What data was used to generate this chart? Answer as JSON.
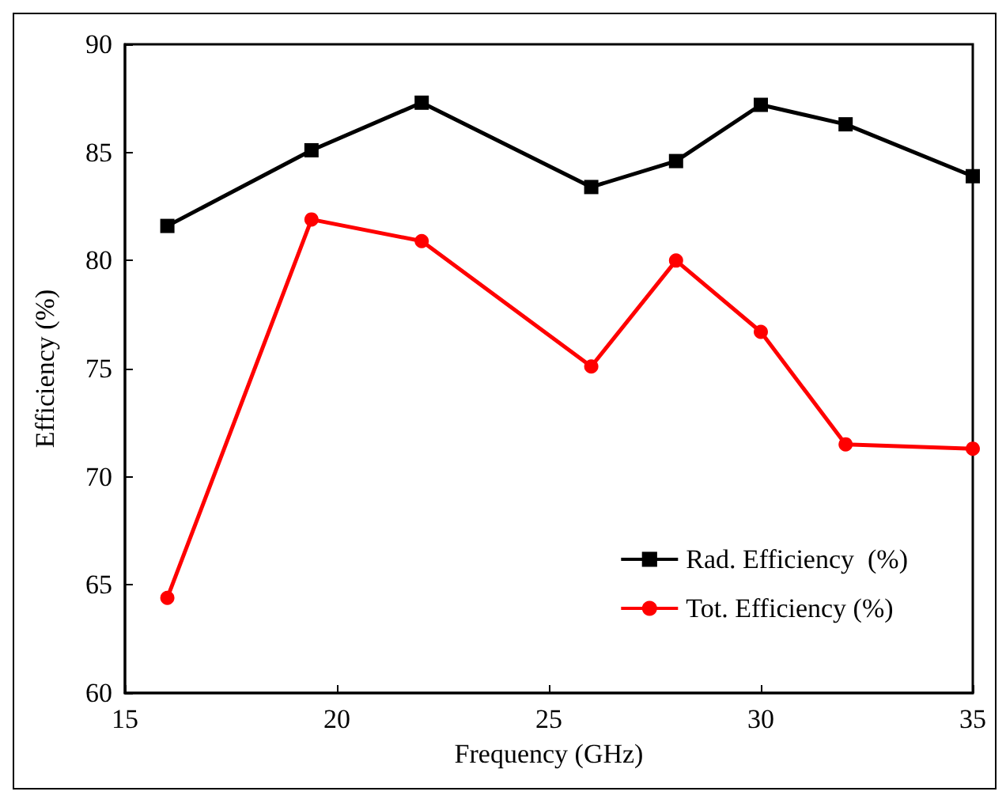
{
  "chart_data": {
    "type": "line",
    "xlabel": "Frequency (GHz)",
    "ylabel": "Efficiency (%)",
    "xlim": [
      15,
      35
    ],
    "xticks": [
      15,
      20,
      25,
      30,
      35
    ],
    "ylim": [
      60,
      90
    ],
    "yticks": [
      60,
      65,
      70,
      75,
      80,
      85,
      90
    ],
    "grid": false,
    "legend": "bottom right",
    "line_style": "solid",
    "series": [
      {
        "name": "Rad. Efficiency  (%)",
        "color": "#000000",
        "marker": "square",
        "x": [
          16,
          19.4,
          22,
          26,
          28,
          30,
          32,
          35
        ],
        "values": [
          81.6,
          85.1,
          87.3,
          83.4,
          84.6,
          87.2,
          86.3,
          83.9
        ]
      },
      {
        "name": "Tot. Efficiency (%)",
        "color": "#ff0000",
        "marker": "circle",
        "x": [
          16,
          19.4,
          22,
          26,
          28,
          30,
          32,
          35
        ],
        "values": [
          64.4,
          81.9,
          80.9,
          75.1,
          80.0,
          76.7,
          71.5,
          71.3
        ]
      }
    ]
  }
}
